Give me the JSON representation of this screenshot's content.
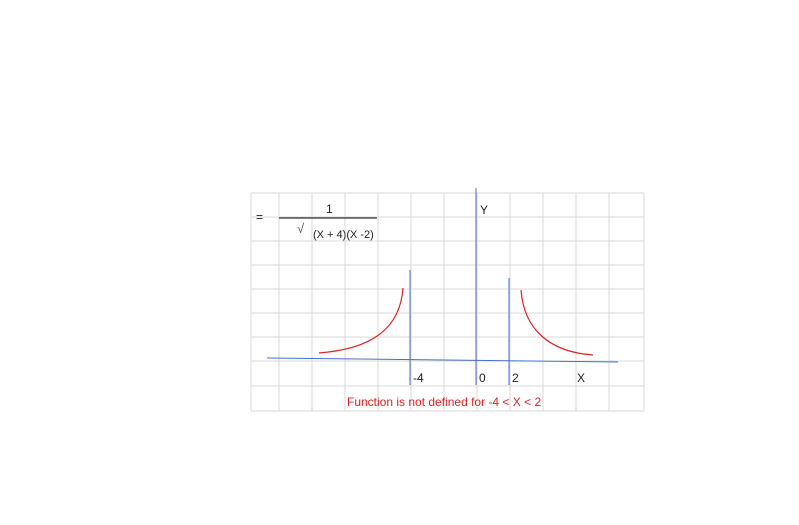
{
  "formula": {
    "prefix": "=",
    "numerator": "1",
    "radical": "√",
    "denominator": "(X + 4)(X -2)"
  },
  "axes": {
    "y_label": "Y",
    "x_label": "X"
  },
  "ticks": {
    "neg4": "-4",
    "zero": "0",
    "two": "2"
  },
  "note": "Function is not defined for -4 < X < 2",
  "colors": {
    "grid": "#d9d9d9",
    "axis": "#4472c4",
    "curve": "#e02020",
    "note": "#e02020"
  }
}
